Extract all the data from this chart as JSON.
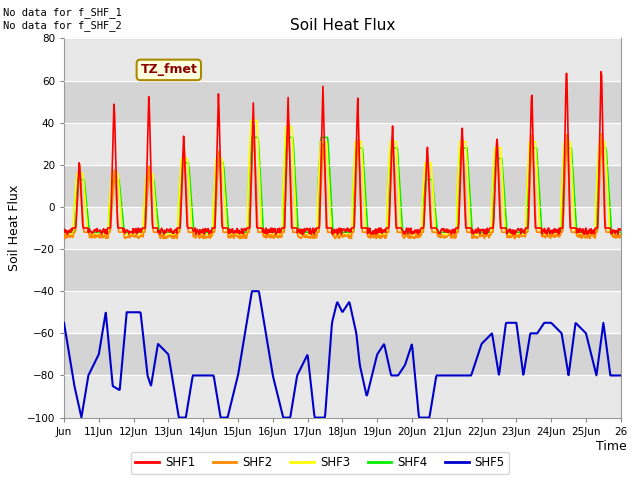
{
  "title": "Soil Heat Flux",
  "ylabel": "Soil Heat Flux",
  "xlabel": "Time",
  "annotation_line1": "No data for f_SHF_1",
  "annotation_line2": "No data for f_SHF_2",
  "tz_label": "TZ_fmet",
  "ylim": [
    -100,
    80
  ],
  "yticks": [
    -100,
    -80,
    -60,
    -40,
    -20,
    0,
    20,
    40,
    60,
    80
  ],
  "xtick_labels": [
    "Jun",
    "11Jun",
    "12Jun",
    "13Jun",
    "14Jun",
    "15Jun",
    "16Jun",
    "17Jun",
    "18Jun",
    "19Jun",
    "20Jun",
    "21Jun",
    "22Jun",
    "23Jun",
    "24Jun",
    "25Jun",
    "26"
  ],
  "series_colors": {
    "SHF1": "#ff0000",
    "SHF2": "#ff8800",
    "SHF3": "#ffff00",
    "SHF4": "#00ee00",
    "SHF5": "#0000cc"
  },
  "background_color": "#d8d8d8",
  "band_color": "#e8e8e8",
  "n_points": 960
}
